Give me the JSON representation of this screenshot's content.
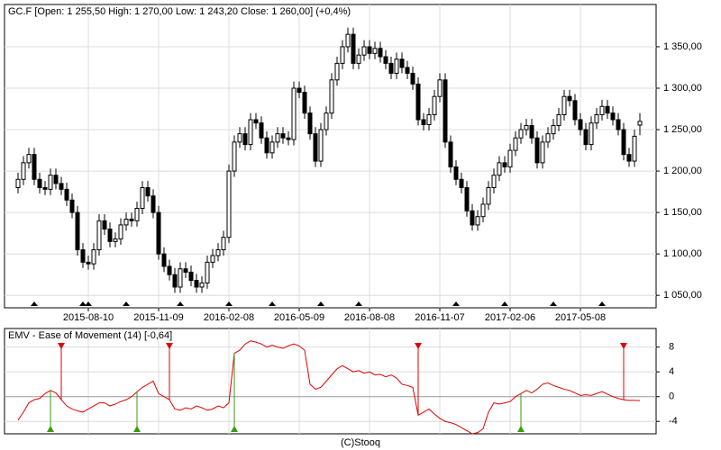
{
  "chart_data": [
    {
      "type": "candlestick",
      "title": "GC.F [Open: 1 255,50  High: 1 270,00  Low: 1 243,20  Close: 1 260,00] (+0,4%)",
      "candles": [
        [
          1180,
          1198,
          1173,
          1190
        ],
        [
          1190,
          1218,
          1183,
          1210
        ],
        [
          1210,
          1228,
          1203,
          1220
        ],
        [
          1220,
          1228,
          1183,
          1190
        ],
        [
          1190,
          1198,
          1173,
          1180
        ],
        [
          1180,
          1188,
          1171,
          1178
        ],
        [
          1178,
          1203,
          1171,
          1195
        ],
        [
          1195,
          1203,
          1178,
          1185
        ],
        [
          1185,
          1193,
          1171,
          1178
        ],
        [
          1178,
          1186,
          1158,
          1165
        ],
        [
          1165,
          1173,
          1143,
          1150
        ],
        [
          1150,
          1158,
          1098,
          1105
        ],
        [
          1105,
          1113,
          1083,
          1090
        ],
        [
          1090,
          1098,
          1081,
          1088
        ],
        [
          1088,
          1113,
          1081,
          1105
        ],
        [
          1105,
          1148,
          1098,
          1140
        ],
        [
          1140,
          1148,
          1123,
          1130
        ],
        [
          1130,
          1138,
          1108,
          1115
        ],
        [
          1115,
          1126,
          1108,
          1118
        ],
        [
          1118,
          1143,
          1111,
          1135
        ],
        [
          1135,
          1150,
          1128,
          1142
        ],
        [
          1142,
          1150,
          1133,
          1140
        ],
        [
          1140,
          1163,
          1133,
          1155
        ],
        [
          1155,
          1188,
          1148,
          1180
        ],
        [
          1180,
          1188,
          1163,
          1170
        ],
        [
          1170,
          1178,
          1143,
          1150
        ],
        [
          1150,
          1158,
          1093,
          1100
        ],
        [
          1100,
          1108,
          1078,
          1085
        ],
        [
          1085,
          1093,
          1068,
          1075
        ],
        [
          1075,
          1083,
          1053,
          1060
        ],
        [
          1060,
          1090,
          1053,
          1082
        ],
        [
          1082,
          1090,
          1071,
          1078
        ],
        [
          1078,
          1086,
          1061,
          1068
        ],
        [
          1068,
          1076,
          1053,
          1060
        ],
        [
          1060,
          1073,
          1053,
          1065
        ],
        [
          1065,
          1098,
          1058,
          1090
        ],
        [
          1090,
          1106,
          1083,
          1098
        ],
        [
          1098,
          1113,
          1091,
          1105
        ],
        [
          1105,
          1128,
          1098,
          1120
        ],
        [
          1120,
          1208,
          1113,
          1200
        ],
        [
          1200,
          1243,
          1193,
          1235
        ],
        [
          1235,
          1253,
          1228,
          1245
        ],
        [
          1245,
          1253,
          1225,
          1232
        ],
        [
          1232,
          1270,
          1225,
          1262
        ],
        [
          1262,
          1270,
          1251,
          1258
        ],
        [
          1258,
          1266,
          1233,
          1240
        ],
        [
          1240,
          1248,
          1215,
          1222
        ],
        [
          1222,
          1243,
          1215,
          1235
        ],
        [
          1235,
          1253,
          1228,
          1245
        ],
        [
          1245,
          1253,
          1233,
          1240
        ],
        [
          1240,
          1248,
          1231,
          1238
        ],
        [
          1238,
          1308,
          1231,
          1300
        ],
        [
          1300,
          1308,
          1288,
          1295
        ],
        [
          1295,
          1303,
          1263,
          1270
        ],
        [
          1270,
          1278,
          1238,
          1245
        ],
        [
          1245,
          1253,
          1205,
          1212
        ],
        [
          1212,
          1258,
          1205,
          1250
        ],
        [
          1250,
          1278,
          1243,
          1270
        ],
        [
          1270,
          1318,
          1263,
          1310
        ],
        [
          1310,
          1338,
          1303,
          1330
        ],
        [
          1330,
          1358,
          1323,
          1350
        ],
        [
          1350,
          1373,
          1343,
          1365
        ],
        [
          1365,
          1373,
          1323,
          1330
        ],
        [
          1330,
          1348,
          1323,
          1340
        ],
        [
          1340,
          1358,
          1333,
          1350
        ],
        [
          1350,
          1358,
          1335,
          1342
        ],
        [
          1342,
          1356,
          1335,
          1348
        ],
        [
          1348,
          1356,
          1331,
          1338
        ],
        [
          1338,
          1346,
          1323,
          1330
        ],
        [
          1330,
          1338,
          1311,
          1318
        ],
        [
          1318,
          1343,
          1311,
          1335
        ],
        [
          1335,
          1343,
          1318,
          1325
        ],
        [
          1325,
          1333,
          1311,
          1318
        ],
        [
          1318,
          1326,
          1298,
          1305
        ],
        [
          1305,
          1313,
          1255,
          1262
        ],
        [
          1262,
          1270,
          1249,
          1256
        ],
        [
          1256,
          1276,
          1249,
          1268
        ],
        [
          1268,
          1298,
          1261,
          1290
        ],
        [
          1290,
          1318,
          1283,
          1310
        ],
        [
          1310,
          1318,
          1228,
          1235
        ],
        [
          1235,
          1243,
          1198,
          1205
        ],
        [
          1205,
          1213,
          1183,
          1190
        ],
        [
          1190,
          1198,
          1173,
          1180
        ],
        [
          1180,
          1188,
          1145,
          1152
        ],
        [
          1152,
          1160,
          1128,
          1135
        ],
        [
          1135,
          1153,
          1128,
          1145
        ],
        [
          1145,
          1168,
          1138,
          1160
        ],
        [
          1160,
          1188,
          1153,
          1180
        ],
        [
          1180,
          1203,
          1173,
          1195
        ],
        [
          1195,
          1218,
          1188,
          1210
        ],
        [
          1210,
          1218,
          1198,
          1205
        ],
        [
          1205,
          1233,
          1198,
          1225
        ],
        [
          1225,
          1248,
          1218,
          1240
        ],
        [
          1240,
          1258,
          1233,
          1250
        ],
        [
          1250,
          1263,
          1243,
          1255
        ],
        [
          1255,
          1263,
          1233,
          1240
        ],
        [
          1240,
          1248,
          1203,
          1210
        ],
        [
          1210,
          1243,
          1203,
          1235
        ],
        [
          1235,
          1253,
          1228,
          1245
        ],
        [
          1245,
          1263,
          1238,
          1255
        ],
        [
          1255,
          1276,
          1248,
          1268
        ],
        [
          1268,
          1298,
          1261,
          1290
        ],
        [
          1290,
          1298,
          1278,
          1285
        ],
        [
          1285,
          1293,
          1255,
          1262
        ],
        [
          1262,
          1270,
          1243,
          1250
        ],
        [
          1250,
          1258,
          1225,
          1232
        ],
        [
          1232,
          1266,
          1225,
          1258
        ],
        [
          1258,
          1276,
          1251,
          1268
        ],
        [
          1268,
          1286,
          1261,
          1278
        ],
        [
          1278,
          1286,
          1263,
          1270
        ],
        [
          1270,
          1278,
          1255,
          1262
        ],
        [
          1262,
          1270,
          1243,
          1250
        ],
        [
          1250,
          1258,
          1213,
          1220
        ],
        [
          1220,
          1228,
          1205,
          1212
        ],
        [
          1212,
          1250,
          1205,
          1242
        ],
        [
          1255.5,
          1270,
          1243.2,
          1260
        ]
      ],
      "up_color": "#ffffff",
      "down_color": "#000000",
      "markers": [
        3,
        12,
        13,
        20,
        30,
        39,
        47,
        56,
        63,
        81,
        90,
        99,
        108
      ],
      "xlim": [
        -2.5,
        118
      ],
      "xticks": [
        {
          "value": 13,
          "label": "2015-08-10"
        },
        {
          "value": 26,
          "label": "2015-11-09"
        },
        {
          "value": 39,
          "label": "2016-02-08"
        },
        {
          "value": 52,
          "label": "2016-05-09"
        },
        {
          "value": 65,
          "label": "2016-08-08"
        },
        {
          "value": 78,
          "label": "2016-11-07"
        },
        {
          "value": 91,
          "label": "2017-02-06"
        },
        {
          "value": 104,
          "label": "2017-05-08"
        }
      ],
      "ylim": [
        1035,
        1401
      ],
      "yticks": [
        {
          "value": 1050,
          "label": "1 050,00"
        },
        {
          "value": 1100,
          "label": "1 100,00"
        },
        {
          "value": 1150,
          "label": "1 150,00"
        },
        {
          "value": 1200,
          "label": "1 200,00"
        },
        {
          "value": 1250,
          "label": "1 250,00"
        },
        {
          "value": 1300,
          "label": "1 300,00"
        },
        {
          "value": 1350,
          "label": "1 350,00"
        }
      ],
      "grid": true
    },
    {
      "type": "line",
      "title": "EMV - Ease of Movement (14) [-0,64]",
      "values": [
        -3.8,
        -2.5,
        -1,
        -0.5,
        -0.3,
        0.5,
        1,
        0.6,
        -0.5,
        -1.5,
        -2,
        -2.3,
        -2.5,
        -2,
        -1.5,
        -1,
        -1,
        -1.5,
        -1.2,
        -0.8,
        -0.5,
        0,
        0.8,
        1.5,
        2,
        2.5,
        0.5,
        0,
        -0.5,
        -2,
        -2.2,
        -1.8,
        -2,
        -1.5,
        -1.8,
        -2.2,
        -2,
        -1.5,
        -1.8,
        -1,
        7,
        7.5,
        8.5,
        9,
        8.8,
        8.5,
        8,
        8.3,
        8,
        7.8,
        8.2,
        8.5,
        8.2,
        7.5,
        2,
        1.2,
        1.5,
        2.5,
        3.5,
        4.5,
        5,
        4.5,
        4,
        4.2,
        3.8,
        4,
        3.5,
        3.6,
        3.2,
        3.5,
        3,
        2,
        1.8,
        1.5,
        -3,
        -2.5,
        -2,
        -2.8,
        -3.5,
        -4,
        -4.2,
        -4.5,
        -5,
        -5.5,
        -6,
        -5.8,
        -5.2,
        -2.5,
        -1,
        -1.2,
        -1,
        -0.8,
        0,
        0.5,
        1,
        0.6,
        1.2,
        2,
        2.2,
        1.8,
        1.5,
        1.2,
        1,
        0.6,
        0.2,
        0.3,
        0.2,
        0.5,
        0.8,
        0.4,
        0,
        -0.3,
        -0.5,
        -0.6,
        -0.6,
        -0.64
      ],
      "color": "#e00000",
      "buy_signals": [
        6,
        22,
        40,
        93
      ],
      "buy_color": "#3a9a10",
      "sell_signals": [
        8,
        28,
        74,
        112
      ],
      "sell_color": "#e00000",
      "xlim": [
        -2.5,
        118
      ],
      "ylim": [
        -6,
        11
      ],
      "yticks": [
        8,
        4,
        0,
        -4
      ],
      "grid": true
    }
  ],
  "footer": "(C)Stooq"
}
